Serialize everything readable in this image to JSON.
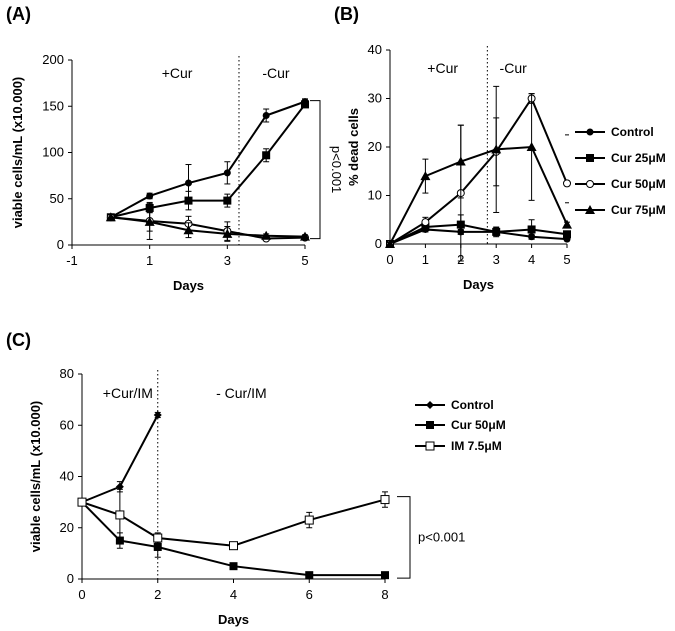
{
  "chart_data": [
    {
      "panel": "(A)",
      "type": "line",
      "xlabel": "Days",
      "ylabel": "viable cells/mL (x10.000)",
      "xlim": [
        -1,
        5
      ],
      "ylim": [
        0,
        200
      ],
      "xticks": [
        -1,
        1,
        3,
        5
      ],
      "yticks": [
        0,
        50,
        100,
        150,
        200
      ],
      "annotations": [
        "+Cur",
        "-Cur"
      ],
      "divider_x": 3.3,
      "bracket_label": "p<0.001",
      "series": [
        {
          "marker": "circle-filled",
          "x": [
            0,
            1,
            2,
            3,
            4,
            5
          ],
          "y": [
            30,
            53,
            67,
            78,
            140,
            155
          ],
          "err": [
            3,
            3,
            20,
            12,
            7,
            3
          ]
        },
        {
          "marker": "square-filled",
          "x": [
            0,
            1,
            2,
            3,
            4,
            5
          ],
          "y": [
            30,
            40,
            48,
            48,
            97,
            152
          ],
          "err": [
            3,
            5,
            10,
            7,
            7,
            3
          ]
        },
        {
          "marker": "circle-open",
          "x": [
            0,
            1,
            2,
            3,
            4,
            5
          ],
          "y": [
            30,
            26,
            23,
            15,
            7,
            8
          ],
          "err": [
            3,
            20,
            8,
            10,
            2,
            2
          ]
        },
        {
          "marker": "triangle-filled",
          "x": [
            0,
            1,
            2,
            3,
            4,
            5
          ],
          "y": [
            30,
            25,
            16,
            12,
            10,
            9
          ],
          "err": [
            3,
            10,
            8,
            8,
            2,
            2
          ]
        }
      ]
    },
    {
      "panel": "(B)",
      "type": "line",
      "xlabel": "Days",
      "ylabel": "% dead cells",
      "xlim": [
        0,
        5
      ],
      "ylim": [
        0,
        40
      ],
      "xticks": [
        0,
        1,
        2,
        3,
        4,
        5
      ],
      "yticks": [
        0,
        10,
        20,
        30,
        40
      ],
      "annotations": [
        "+Cur",
        "-Cur"
      ],
      "divider_x": 2.75,
      "series": [
        {
          "name": "Control",
          "marker": "circle-filled",
          "x": [
            0,
            1,
            2,
            3,
            4,
            5
          ],
          "y": [
            0,
            3,
            2.5,
            2.5,
            1.5,
            1
          ],
          "err": [
            0.3,
            0.5,
            0.5,
            0.8,
            0.5,
            0.3
          ]
        },
        {
          "name": "Cur 25μM",
          "marker": "square-filled",
          "x": [
            0,
            1,
            2,
            3,
            4,
            5
          ],
          "y": [
            0,
            3.5,
            4,
            2.5,
            3,
            2
          ],
          "err": [
            0.3,
            1,
            2,
            1,
            2,
            0.5
          ]
        },
        {
          "name": "Cur 50μM",
          "marker": "circle-open",
          "x": [
            0,
            1,
            2,
            3,
            4,
            5
          ],
          "y": [
            0,
            4.5,
            10.5,
            19,
            30,
            12.5
          ],
          "err": [
            0.3,
            1,
            14,
            7,
            1,
            0.5
          ]
        },
        {
          "name": "Cur 75μM",
          "marker": "triangle-filled",
          "x": [
            0,
            1,
            2,
            3,
            4,
            5
          ],
          "y": [
            0,
            14,
            17,
            19.5,
            20,
            4
          ],
          "err": [
            0.3,
            3.5,
            7.5,
            13,
            11,
            0.5
          ]
        }
      ]
    },
    {
      "panel": "(C)",
      "type": "line",
      "xlabel": "Days",
      "ylabel": "viable cells/mL (x10.000)",
      "xlim": [
        0,
        8
      ],
      "ylim": [
        0,
        80
      ],
      "xticks": [
        0,
        2,
        4,
        6,
        8
      ],
      "yticks": [
        0,
        20,
        40,
        60,
        80
      ],
      "annotations": [
        "+Cur/IM",
        "- Cur/IM"
      ],
      "divider_x": 2,
      "bracket_label": "p<0.001",
      "series": [
        {
          "name": "Control",
          "marker": "diamond-filled",
          "x": [
            0,
            1,
            2
          ],
          "y": [
            30,
            36,
            64
          ],
          "err": [
            1,
            2,
            1
          ]
        },
        {
          "name": "Cur 50μM",
          "marker": "square-filled",
          "x": [
            0,
            1,
            2,
            4,
            6,
            8
          ],
          "y": [
            30,
            15,
            12.5,
            5,
            1.5,
            1.5
          ],
          "err": [
            1,
            3,
            4,
            1,
            1,
            0.5
          ]
        },
        {
          "name": "IM  7.5μM",
          "marker": "square-open",
          "x": [
            0,
            1,
            2,
            4,
            6,
            8
          ],
          "y": [
            30,
            25,
            16,
            13,
            23,
            31
          ],
          "err": [
            1,
            10,
            2,
            1,
            3,
            3
          ]
        }
      ]
    }
  ]
}
